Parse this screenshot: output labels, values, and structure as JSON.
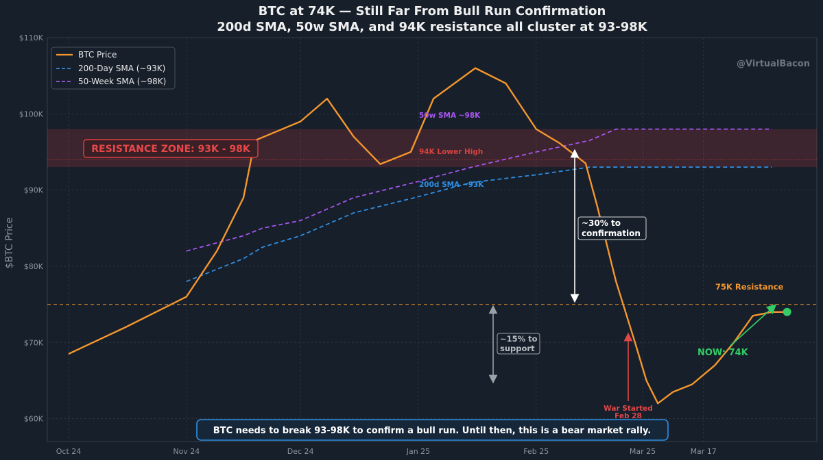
{
  "chart_data": {
    "type": "line",
    "title": "BTC at 74K — Still Far From Bull Run Confirmation",
    "subtitle": "200d SMA, 50w SMA, and 94K resistance all cluster at 93-98K",
    "ylabel": "$BTC Price",
    "xlabel": "",
    "ylim": [
      57000,
      110000
    ],
    "yticks": [
      "$60K",
      "$70K",
      "$80K",
      "$90K",
      "$100K",
      "$110K"
    ],
    "ytick_values": [
      60000,
      70000,
      80000,
      90000,
      100000,
      110000
    ],
    "xticks": [
      "Oct 24",
      "Nov 24",
      "Dec 24",
      "Jan 25",
      "Feb 25",
      "Mar 25",
      "Mar 17"
    ],
    "xtick_values": [
      "2024-10-01",
      "2024-11-01",
      "2024-12-01",
      "2025-01-01",
      "2025-02-01",
      "2025-03-01",
      "2025-03-17"
    ],
    "grid": true,
    "legend_position": "top-left",
    "watermark": "@VirtualBacon",
    "series": [
      {
        "name": "BTC Price",
        "color": "#f5962e",
        "style": "solid",
        "x": [
          "2024-10-01",
          "2024-10-16",
          "2024-11-01",
          "2024-11-09",
          "2024-11-16",
          "2024-11-19",
          "2024-12-01",
          "2024-12-08",
          "2024-12-15",
          "2024-12-22",
          "2024-12-30",
          "2025-01-05",
          "2025-01-16",
          "2025-01-24",
          "2025-02-01",
          "2025-02-07",
          "2025-02-14",
          "2025-02-17",
          "2025-02-22",
          "2025-02-27",
          "2025-03-02",
          "2025-03-05",
          "2025-03-09",
          "2025-03-14",
          "2025-03-20",
          "2025-03-25",
          "2025-03-30",
          "2025-04-04",
          "2025-04-08"
        ],
        "values": [
          68500,
          72000,
          76000,
          82000,
          89000,
          96500,
          99000,
          102000,
          97000,
          93400,
          95000,
          102000,
          106000,
          104000,
          98000,
          96200,
          93500,
          88000,
          78000,
          70000,
          65000,
          62000,
          63500,
          64500,
          67000,
          70000,
          73500,
          74000,
          74000
        ]
      },
      {
        "name": "200-Day SMA (~93K)",
        "color": "#2f8ee3",
        "style": "dashed",
        "x": [
          "2024-11-01",
          "2024-11-16",
          "2024-11-21",
          "2024-12-01",
          "2024-12-15",
          "2024-12-31",
          "2025-01-15",
          "2025-02-01",
          "2025-02-15",
          "2025-03-01",
          "2025-04-04"
        ],
        "values": [
          78000,
          81000,
          82500,
          84000,
          87000,
          89000,
          91000,
          92000,
          93000,
          93000,
          93000
        ]
      },
      {
        "name": "50-Week SMA (~98K)",
        "color": "#a855f0",
        "style": "dashed",
        "x": [
          "2024-11-01",
          "2024-11-16",
          "2024-11-21",
          "2024-12-01",
          "2024-12-15",
          "2024-12-31",
          "2025-01-15",
          "2025-02-01",
          "2025-02-15",
          "2025-02-22",
          "2025-04-04"
        ],
        "values": [
          82000,
          84000,
          85000,
          86000,
          89000,
          91000,
          93000,
          95000,
          96500,
          98000,
          98000
        ]
      }
    ],
    "annotations": {
      "resistance_zone": {
        "label": "RESISTANCE ZONE: 93K - 98K",
        "low": 93000,
        "high": 98000,
        "color": "#d9413f"
      },
      "lower_high": {
        "label": "94K Lower High",
        "value": 94000
      },
      "sma50_label": "50w SMA ~98K",
      "sma200_label": "200d SMA ~93K",
      "resistance_75k": {
        "label": "75K Resistance",
        "value": 75000
      },
      "to_confirmation": {
        "label_line1": "~30% to",
        "label_line2": "confirmation"
      },
      "to_support": {
        "label_line1": "~15% to",
        "label_line2": "support"
      },
      "war_started": {
        "line1": "War Started",
        "line2": "Feb 28"
      },
      "now": {
        "label": "NOW: 74K",
        "value": 74000
      },
      "bottom_note": "BTC needs to break 93-98K to confirm a bull run. Until then, this is a bear market rally."
    }
  }
}
